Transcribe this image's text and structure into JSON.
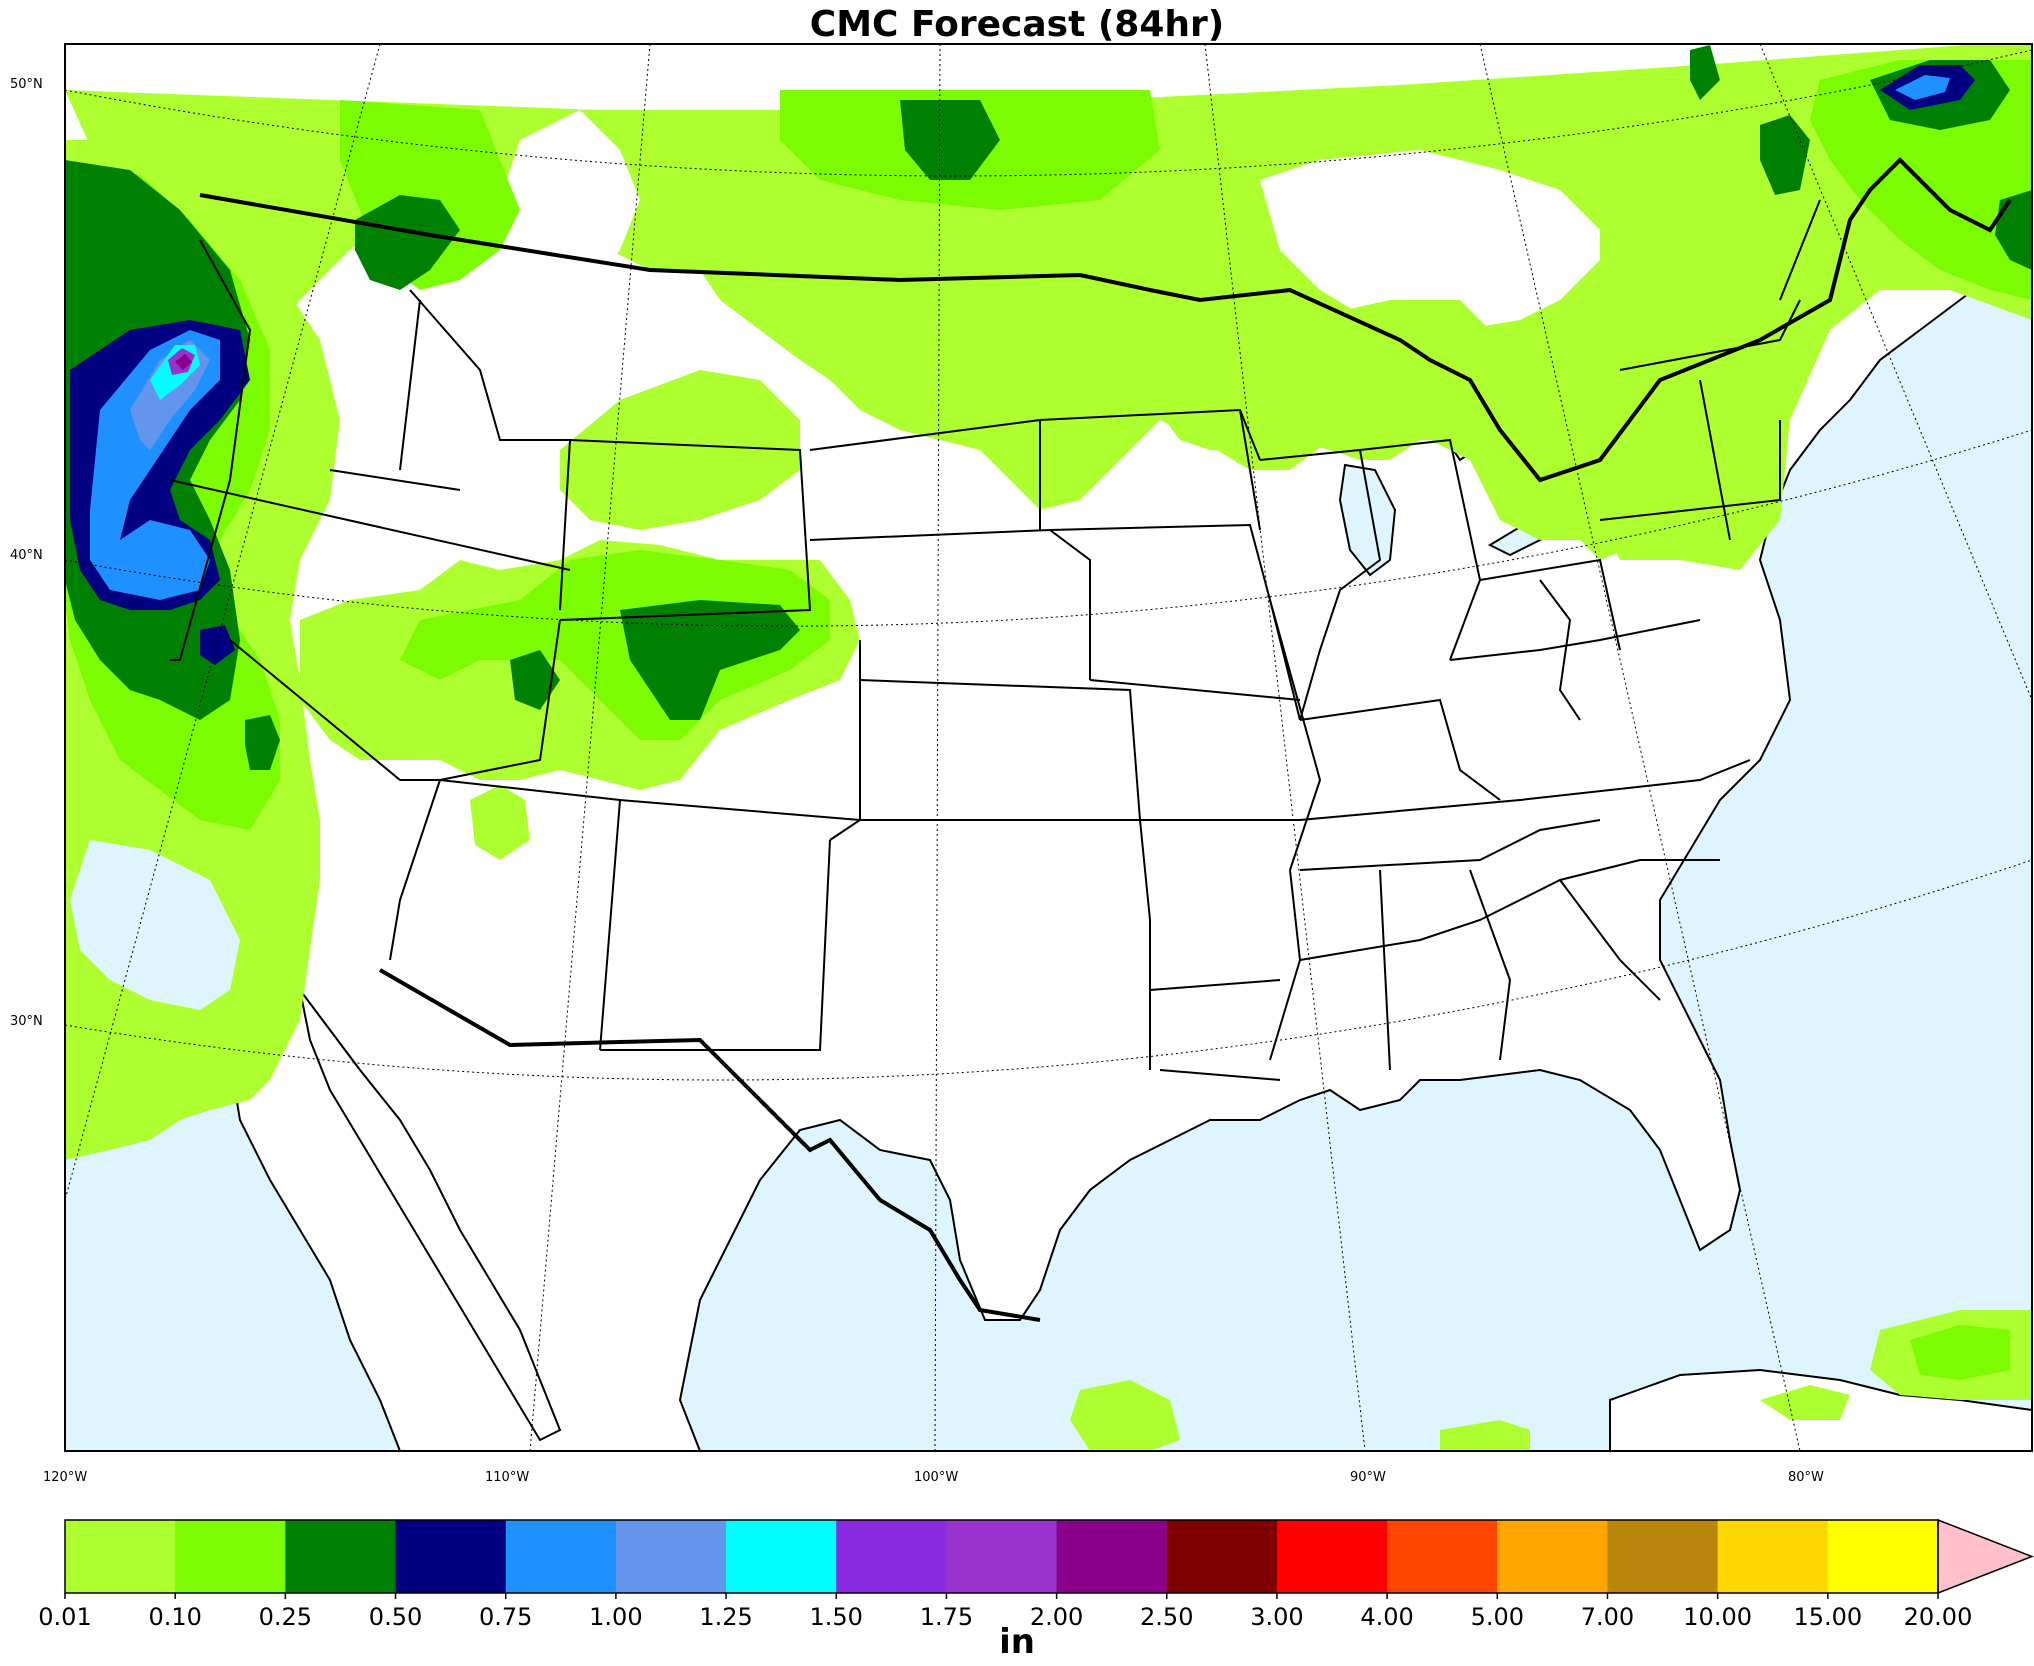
{
  "title": "CMC Forecast (84hr)",
  "map": {
    "projection": "lambert-conformal",
    "region": "Contiguous United States",
    "ocean_color": "#dff5fe",
    "land_color": "#ffffff",
    "lat_labels": [
      "50°N",
      "40°N",
      "30°N"
    ],
    "lon_labels": [
      "120°W",
      "110°W",
      "100°W",
      "90°W",
      "80°W"
    ],
    "precip_areas": [
      {
        "region": "Pacific Northwest coast",
        "max_level": "2.00–2.50"
      },
      {
        "region": "Northern Rockies / Canada border",
        "max_level": "0.25–0.50"
      },
      {
        "region": "Colorado Rockies",
        "max_level": "0.25–0.50"
      },
      {
        "region": "Great Lakes / Northeast",
        "max_level": "0.10–0.25"
      },
      {
        "region": "Northern Maine",
        "max_level": "0.50–0.75"
      }
    ]
  },
  "colorbar": {
    "unit": "in",
    "ticks": [
      "0.01",
      "0.10",
      "0.25",
      "0.50",
      "0.75",
      "1.00",
      "1.25",
      "1.50",
      "1.75",
      "2.00",
      "2.50",
      "3.00",
      "4.00",
      "5.00",
      "7.00",
      "10.00",
      "15.00",
      "20.00"
    ],
    "colors": [
      "#adff2f",
      "#7cfc00",
      "#008000",
      "#000080",
      "#1e90ff",
      "#6495ed",
      "#00ffff",
      "#8a2be2",
      "#9932cc",
      "#8b008b",
      "#800000",
      "#ff0000",
      "#ff4500",
      "#ffa500",
      "#b8860b",
      "#ffd700",
      "#ffff00"
    ],
    "extend_color": "#ffc0cb"
  }
}
